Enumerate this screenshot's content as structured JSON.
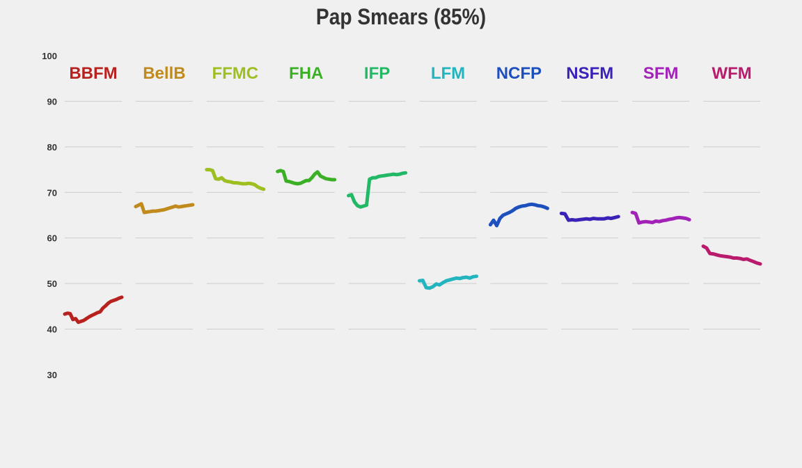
{
  "chart_data": {
    "type": "line",
    "title": "Pap Smears (85%)",
    "xlabel": "",
    "ylabel": "",
    "ylim": [
      30,
      100
    ],
    "yticks": [
      "100",
      "90",
      "80",
      "70",
      "60",
      "50",
      "40",
      "30"
    ],
    "grid_values": [
      90,
      80,
      70,
      60,
      50,
      40
    ],
    "grid": true,
    "legend": "none",
    "series": [
      {
        "name": "BBFM",
        "color": "#b8221e",
        "values": [
          43.3,
          43.5,
          43.4,
          42.1,
          42.3,
          41.5,
          41.7,
          41.9,
          42.3,
          42.7,
          43.0,
          43.3,
          43.6,
          43.8,
          44.6,
          45.1,
          45.7,
          46.1,
          46.3,
          46.5,
          46.8,
          47.0
        ]
      },
      {
        "name": "BellB",
        "color": "#c08b1c",
        "values": [
          66.9,
          67.2,
          67.5,
          65.6,
          65.7,
          65.8,
          65.9,
          65.9,
          66.0,
          66.1,
          66.2,
          66.4,
          66.6,
          66.8,
          67.0,
          66.8,
          66.9,
          67.0,
          67.1,
          67.2,
          67.3
        ]
      },
      {
        "name": "FFMC",
        "color": "#9ebf22",
        "values": [
          75.0,
          75.0,
          74.8,
          73.0,
          72.9,
          73.2,
          72.6,
          72.4,
          72.3,
          72.1,
          72.1,
          72.0,
          71.9,
          71.9,
          72.0,
          71.9,
          71.7,
          71.2,
          70.9,
          70.7
        ]
      },
      {
        "name": "FHA",
        "color": "#3bb026",
        "values": [
          74.6,
          74.8,
          74.6,
          72.5,
          72.4,
          72.2,
          72.0,
          71.9,
          72.0,
          72.3,
          72.6,
          72.6,
          73.2,
          74.0,
          74.5,
          73.6,
          73.3,
          73.0,
          72.9,
          72.8,
          72.8
        ]
      },
      {
        "name": "IFP",
        "color": "#22b866",
        "values": [
          69.3,
          69.5,
          67.9,
          67.1,
          66.8,
          67.0,
          67.2,
          72.9,
          73.2,
          73.2,
          73.5,
          73.6,
          73.7,
          73.8,
          73.9,
          74.0,
          73.9,
          74.0,
          74.2,
          74.3
        ]
      },
      {
        "name": "LFM",
        "color": "#22b4bf",
        "values": [
          50.6,
          50.7,
          49.1,
          49.0,
          49.3,
          49.9,
          49.7,
          50.2,
          50.6,
          50.8,
          51.0,
          51.2,
          51.1,
          51.3,
          51.4,
          51.2,
          51.5,
          51.6
        ]
      },
      {
        "name": "NCFP",
        "color": "#1d4fbe",
        "values": [
          62.9,
          63.9,
          62.7,
          64.3,
          65.0,
          65.3,
          65.6,
          66.0,
          66.5,
          66.8,
          67.0,
          67.1,
          67.3,
          67.4,
          67.3,
          67.1,
          67.0,
          66.8,
          66.5
        ]
      },
      {
        "name": "NSFM",
        "color": "#3a22b8",
        "values": [
          65.4,
          65.3,
          63.9,
          64.0,
          63.9,
          64.0,
          64.1,
          64.2,
          64.1,
          64.3,
          64.2,
          64.2,
          64.2,
          64.4,
          64.3,
          64.5,
          64.7
        ]
      },
      {
        "name": "SFM",
        "color": "#a222b8",
        "values": [
          65.6,
          65.4,
          63.3,
          63.5,
          63.6,
          63.5,
          63.4,
          63.7,
          63.6,
          63.8,
          63.9,
          64.1,
          64.2,
          64.4,
          64.5,
          64.4,
          64.3,
          64.0
        ]
      },
      {
        "name": "WFM",
        "color": "#b91c6c",
        "values": [
          58.2,
          57.8,
          56.6,
          56.5,
          56.3,
          56.1,
          56.0,
          55.9,
          55.8,
          55.6,
          55.6,
          55.5,
          55.3,
          55.4,
          55.1,
          54.8,
          54.5,
          54.3
        ]
      }
    ]
  }
}
